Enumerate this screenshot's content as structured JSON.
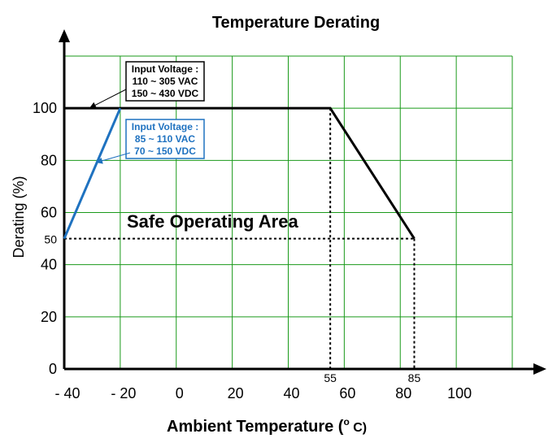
{
  "chart_data": {
    "type": "line",
    "title": "Temperature Derating",
    "xlabel": "Ambient Temperature (",
    "xlabel_unit": "o",
    "xlabel_tail": " C)",
    "ylabel": "Derating (%)",
    "xlim": [
      -40,
      120
    ],
    "ylim": [
      0,
      120
    ],
    "grid": true,
    "x_tick_labels": [
      "- 40",
      "- 20",
      "0",
      "20",
      "40",
      "60",
      "80",
      "100"
    ],
    "x_tick_values": [
      -40,
      -20,
      0,
      20,
      40,
      60,
      80,
      100
    ],
    "y_tick_labels": [
      "0",
      "20",
      "40",
      "60",
      "80",
      "100"
    ],
    "y_tick_values": [
      0,
      20,
      40,
      60,
      80,
      100
    ],
    "series": [
      {
        "name": "Input Voltage : 110 ~ 305 VAC 150 ~ 430 VDC",
        "color": "#000000",
        "x": [
          -40,
          55,
          85
        ],
        "y": [
          100,
          100,
          50
        ]
      },
      {
        "name": "Input Voltage : 85 ~ 110 VAC 70 ~ 150 VDC",
        "color": "#1f72c0",
        "x": [
          -40,
          -20
        ],
        "y": [
          50,
          100
        ]
      }
    ],
    "reference_lines": {
      "y50": {
        "y": 50,
        "x_to": 85
      },
      "x55": {
        "x": 55,
        "y_to": 100
      },
      "x85": {
        "x": 85,
        "y_to": 50
      }
    },
    "annotations": {
      "y50_label": "50",
      "x55_label": "55",
      "x85_label": "85",
      "area_label": "Safe Operating Area",
      "black_box": [
        "Input Voltage :",
        "110 ~ 305 VAC",
        "150 ~ 430 VDC"
      ],
      "blue_box": [
        "Input Voltage :",
        "85 ~ 110 VAC",
        "70 ~ 150 VDC"
      ]
    },
    "colors": {
      "grid": "#1a9a1a",
      "black": "#000000",
      "blue": "#1f72c0"
    }
  }
}
